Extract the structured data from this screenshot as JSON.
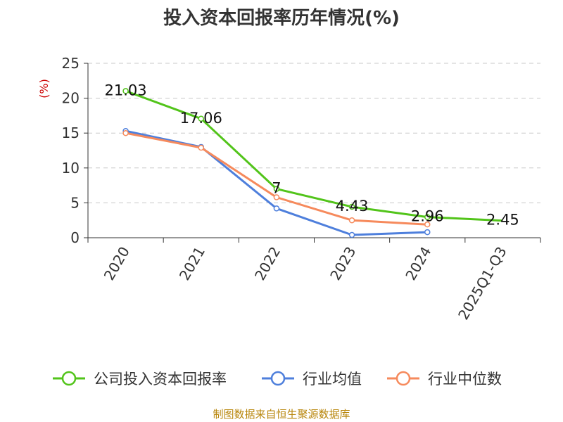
{
  "chart_data": {
    "type": "line",
    "title": "投入资本回报率历年情况(%)",
    "unit_label": "(%)",
    "categories": [
      "2020",
      "2021",
      "2022",
      "2023",
      "2024",
      "2025Q1-Q3"
    ],
    "ylim": [
      0,
      25
    ],
    "yticks": [
      0,
      5,
      10,
      15,
      20,
      25
    ],
    "grid": true,
    "legend_position": "bottom",
    "series": [
      {
        "name": "公司投入资本回报率",
        "color": "#52c41a",
        "values": [
          21.03,
          17.06,
          7,
          4.43,
          2.96,
          2.45
        ],
        "labels": [
          "21.03",
          "17.06",
          "7",
          "4.43",
          "2.96",
          "2.45"
        ]
      },
      {
        "name": "行业均值",
        "color": "#4e7fdc",
        "values": [
          15.3,
          13.0,
          4.2,
          0.4,
          0.8,
          null
        ]
      },
      {
        "name": "行业中位数",
        "color": "#f68a5c",
        "values": [
          15.0,
          12.9,
          5.8,
          2.5,
          1.9,
          null
        ]
      }
    ],
    "source": "制图数据来自恒生聚源数据库"
  }
}
